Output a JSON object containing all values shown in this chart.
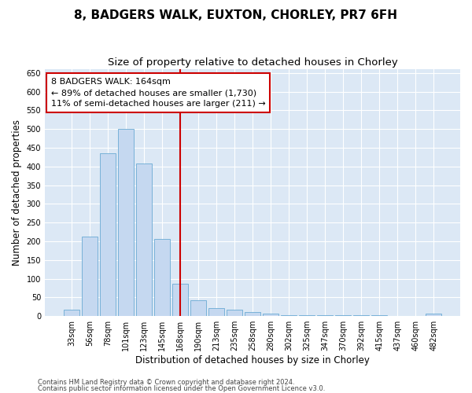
{
  "title1": "8, BADGERS WALK, EUXTON, CHORLEY, PR7 6FH",
  "title2": "Size of property relative to detached houses in Chorley",
  "xlabel": "Distribution of detached houses by size in Chorley",
  "ylabel": "Number of detached properties",
  "categories": [
    "33sqm",
    "56sqm",
    "78sqm",
    "101sqm",
    "123sqm",
    "145sqm",
    "168sqm",
    "190sqm",
    "213sqm",
    "235sqm",
    "258sqm",
    "280sqm",
    "302sqm",
    "325sqm",
    "347sqm",
    "370sqm",
    "392sqm",
    "415sqm",
    "437sqm",
    "460sqm",
    "482sqm"
  ],
  "values": [
    18,
    213,
    435,
    500,
    408,
    207,
    87,
    42,
    22,
    18,
    11,
    6,
    2,
    2,
    2,
    2,
    2,
    2,
    1,
    1,
    6
  ],
  "bar_color": "#c5d8f0",
  "bar_edge_color": "#6aaad4",
  "vline_x_index": 6,
  "vline_color": "#cc0000",
  "annotation_line1": "8 BADGERS WALK: 164sqm",
  "annotation_line2": "← 89% of detached houses are smaller (1,730)",
  "annotation_line3": "11% of semi-detached houses are larger (211) →",
  "annotation_box_facecolor": "#ffffff",
  "annotation_box_edgecolor": "#cc0000",
  "ylim": [
    0,
    660
  ],
  "yticks": [
    0,
    50,
    100,
    150,
    200,
    250,
    300,
    350,
    400,
    450,
    500,
    550,
    600,
    650
  ],
  "plot_bg_color": "#dce8f5",
  "figure_bg_color": "#ffffff",
  "grid_color": "#ffffff",
  "footer1": "Contains HM Land Registry data © Crown copyright and database right 2024.",
  "footer2": "Contains public sector information licensed under the Open Government Licence v3.0.",
  "title1_fontsize": 11,
  "title2_fontsize": 9.5,
  "tick_fontsize": 7,
  "label_fontsize": 8.5,
  "annotation_fontsize": 8,
  "footer_fontsize": 6
}
